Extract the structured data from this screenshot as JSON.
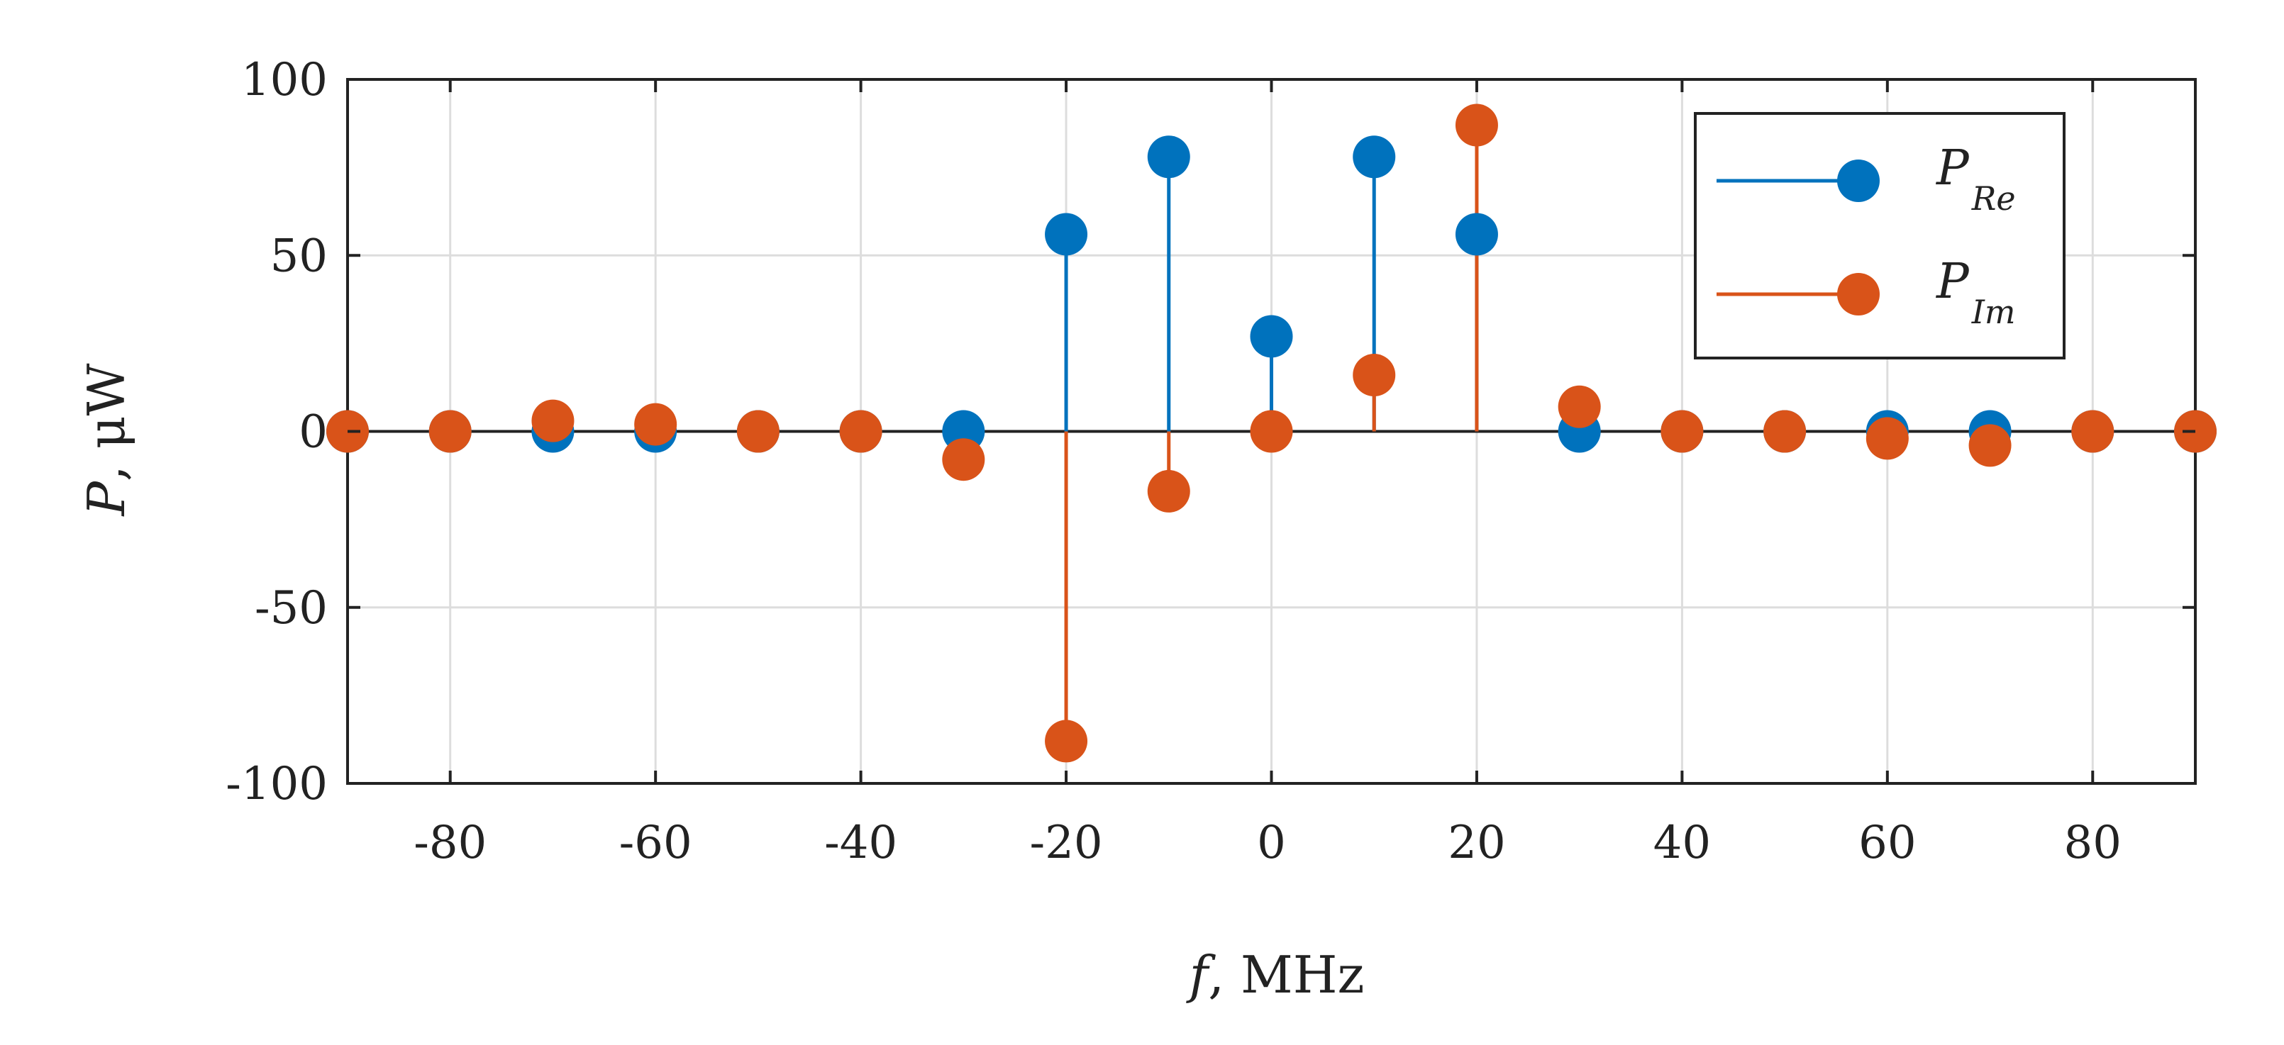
{
  "chart_data": {
    "type": "stem",
    "title": "",
    "xlabel": {
      "symbol": "f",
      "unit": ", MHz"
    },
    "ylabel": {
      "symbol": "P",
      "unit": ", μW"
    },
    "xlim": [
      -90,
      90
    ],
    "ylim": [
      -100,
      100
    ],
    "xticks": [
      -80,
      -60,
      -40,
      -20,
      0,
      20,
      40,
      60,
      80
    ],
    "yticks": [
      -100,
      -50,
      0,
      50,
      100
    ],
    "grid": true,
    "legend_position": "top-right",
    "x": [
      -90,
      -80,
      -70,
      -60,
      -50,
      -40,
      -30,
      -20,
      -10,
      0,
      10,
      20,
      30,
      40,
      50,
      60,
      70,
      80,
      90
    ],
    "series": [
      {
        "name": "P_Re",
        "label_main": "P",
        "label_sub": "Re",
        "color": "#0072BD",
        "values": [
          0,
          0,
          0,
          0,
          0,
          0,
          0,
          56,
          78,
          27,
          78,
          56,
          0,
          0,
          0,
          0,
          0,
          0,
          0
        ]
      },
      {
        "name": "P_Im",
        "label_main": "P",
        "label_sub": "Im",
        "color": "#D95319",
        "values": [
          0,
          0,
          3,
          2,
          0,
          0,
          -8,
          -88,
          -17,
          0,
          16,
          87,
          7,
          0,
          0,
          -2,
          -4,
          0,
          0
        ]
      }
    ]
  }
}
